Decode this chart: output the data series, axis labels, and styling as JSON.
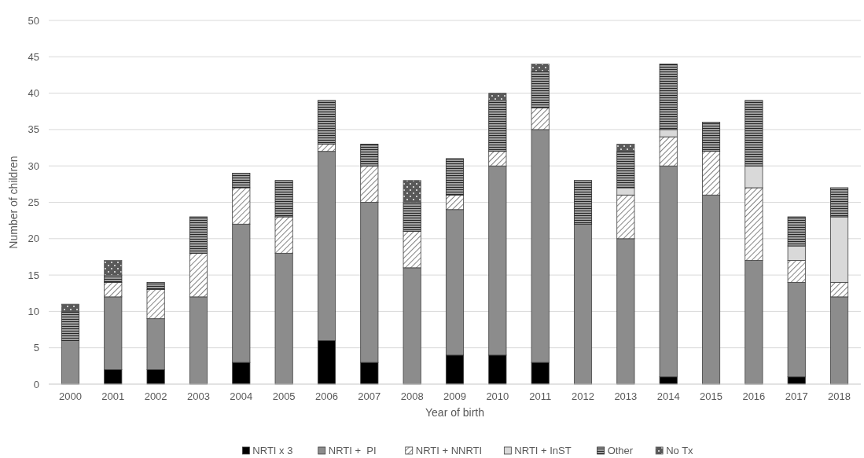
{
  "chart_data": {
    "type": "bar",
    "stacked": true,
    "xlabel": "Year of birth",
    "ylabel": "Number of children",
    "categories": [
      "2000",
      "2001",
      "2002",
      "2003",
      "2004",
      "2005",
      "2006",
      "2007",
      "2008",
      "2009",
      "2010",
      "2011",
      "2012",
      "2013",
      "2014",
      "2015",
      "2016",
      "2017",
      "2018"
    ],
    "series": [
      {
        "name": "NRTI x 3",
        "color": "#000000",
        "values": [
          0,
          2,
          2,
          0,
          3,
          0,
          6,
          3,
          0,
          4,
          4,
          3,
          0,
          0,
          1,
          0,
          0,
          1,
          0
        ]
      },
      {
        "name": "NRTI +  PI",
        "color": "#8c8c8c",
        "values": [
          6,
          10,
          7,
          12,
          19,
          18,
          26,
          22,
          16,
          20,
          26,
          32,
          22,
          20,
          29,
          26,
          17,
          13,
          12
        ]
      },
      {
        "name": "NRTI + NNRTI",
        "color": "#404040",
        "values": [
          0,
          2,
          4,
          6,
          5,
          5,
          1,
          5,
          5,
          2,
          2,
          3,
          0,
          6,
          4,
          6,
          10,
          3,
          2
        ]
      },
      {
        "name": "NRTI + InST",
        "color": "#d9d9d9",
        "values": [
          0,
          0,
          0,
          0,
          0,
          0,
          0,
          0,
          0,
          0,
          0,
          0,
          0,
          1,
          1,
          0,
          3,
          2,
          9
        ]
      },
      {
        "name": "Other",
        "color": "#262626",
        "values": [
          4,
          1,
          1,
          5,
          2,
          5,
          6,
          3,
          4,
          5,
          7,
          5,
          6,
          5,
          9,
          4,
          9,
          4,
          4
        ]
      },
      {
        "name": "No Tx",
        "color": "#595959",
        "values": [
          1,
          2,
          0,
          0,
          0,
          0,
          0,
          0,
          3,
          0,
          1,
          1,
          0,
          1,
          0,
          0,
          0,
          0,
          0
        ]
      }
    ],
    "ylim": [
      0,
      50
    ],
    "yticks": [
      0,
      5,
      10,
      15,
      20,
      25,
      30,
      35,
      40,
      45,
      50
    ],
    "grid": "y",
    "legend": "bottom"
  }
}
